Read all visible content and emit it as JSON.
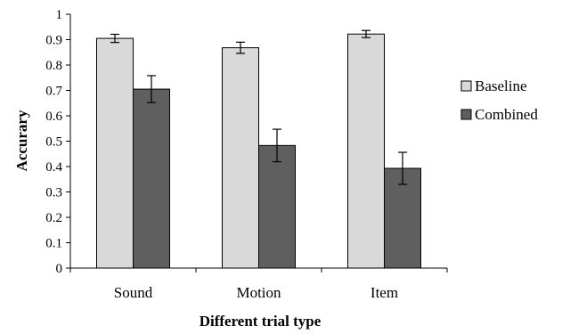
{
  "chart_data": {
    "type": "bar",
    "title": "",
    "xlabel": "Different trial type",
    "ylabel": "Accurary",
    "categories": [
      "Sound",
      "Motion",
      "Item"
    ],
    "series": [
      {
        "name": "Baseline",
        "color": "#d9d9d9",
        "values": [
          0.905,
          0.868,
          0.922
        ],
        "errors": [
          0.016,
          0.022,
          0.014
        ]
      },
      {
        "name": "Combined",
        "color": "#5f5f5f",
        "values": [
          0.705,
          0.483,
          0.393
        ],
        "errors": [
          0.053,
          0.064,
          0.063
        ]
      }
    ],
    "ylim": [
      0,
      1
    ],
    "yticks": [
      "0",
      "0.1",
      "0.2",
      "0.3",
      "0.4",
      "0.5",
      "0.6",
      "0.7",
      "0.8",
      "0.9",
      "1"
    ],
    "grid": false,
    "legend_position": "right"
  }
}
